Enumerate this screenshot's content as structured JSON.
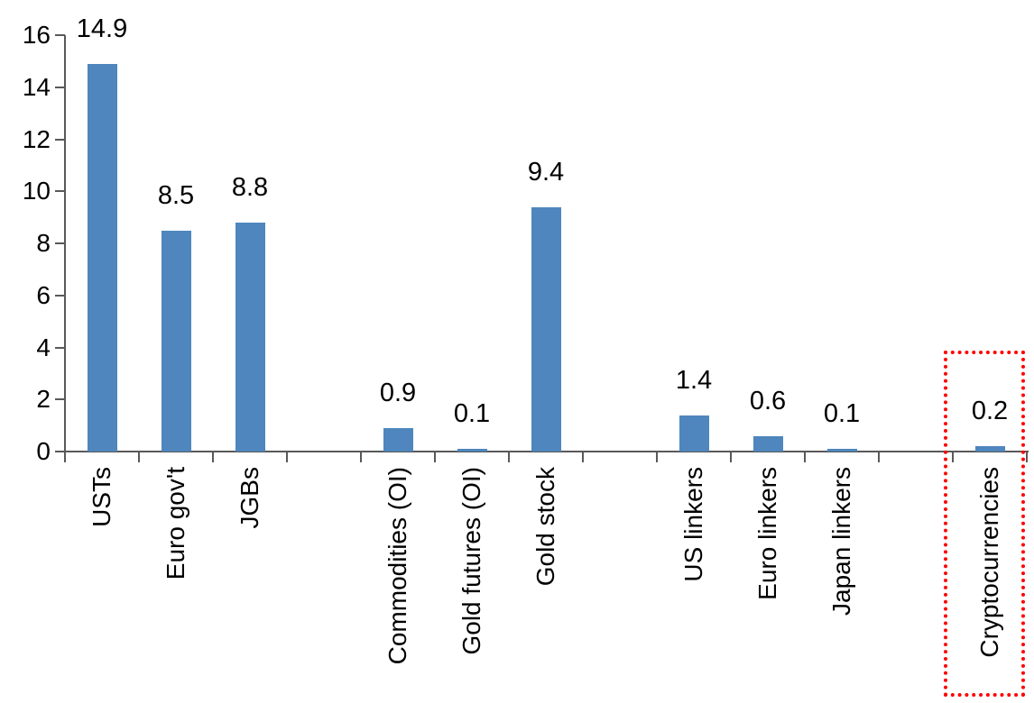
{
  "chart_data": {
    "type": "bar",
    "title": "",
    "categories": [
      "USTs",
      "Euro gov't",
      "JGBs",
      "Commodities (OI)",
      "Gold futures (OI)",
      "Gold stock",
      "US linkers",
      "Euro linkers",
      "Japan linkers",
      "Cryptocurrencies"
    ],
    "values": [
      14.9,
      8.5,
      8.8,
      0.9,
      0.1,
      9.4,
      1.4,
      0.6,
      0.1,
      0.2
    ],
    "data_labels": [
      "14.9",
      "8.5",
      "8.8",
      "0.9",
      "0.1",
      "9.4",
      "1.4",
      "0.6",
      "0.1",
      "0.2"
    ],
    "slot_indices": [
      0,
      1,
      2,
      4,
      5,
      6,
      8,
      9,
      10,
      12
    ],
    "n_slots": 13,
    "group_gaps_after": [
      "JGBs",
      "Gold stock",
      "Japan linkers"
    ],
    "xlabel": "",
    "ylabel": "",
    "y_ticks": [
      0,
      2,
      4,
      6,
      8,
      10,
      12,
      14,
      16
    ],
    "ylim": [
      0,
      16
    ],
    "grid": false,
    "legend_position": "none",
    "bar_color": "#4E86BD",
    "axis_color": "#595959",
    "text_color": "#000000",
    "highlight": {
      "category": "Cryptocurrencies",
      "box_color": "#FF0000",
      "box_style": "dotted"
    }
  }
}
